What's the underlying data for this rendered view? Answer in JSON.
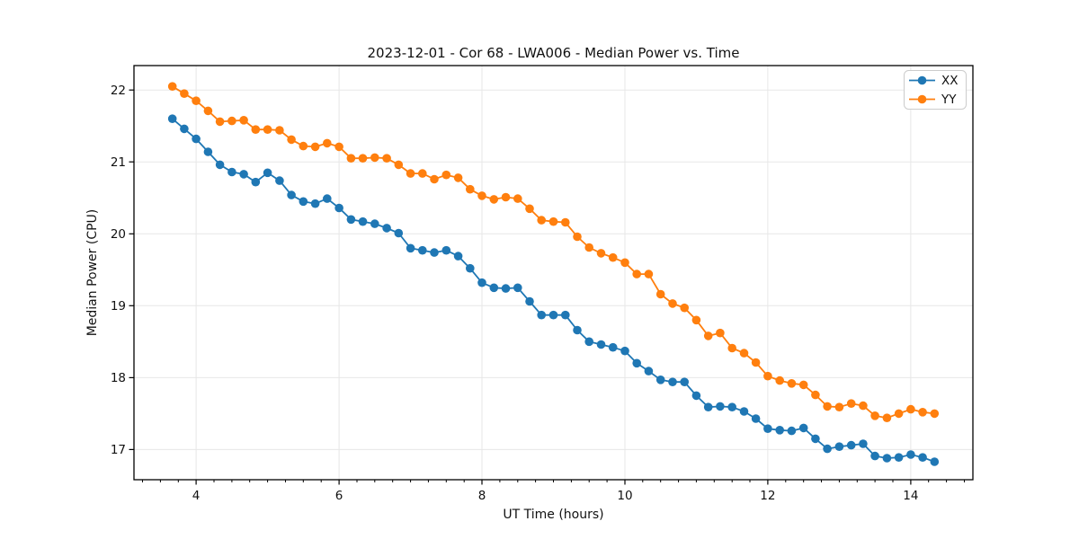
{
  "figure": {
    "background": "#ffffff"
  },
  "chart_data": {
    "type": "line",
    "title": "2023-12-01 - Cor 68 - LWA006 - Median Power vs. Time",
    "xlabel": "UT Time (hours)",
    "ylabel": "Median Power (CPU)",
    "xlim": [
      3.13,
      14.87
    ],
    "ylim": [
      16.58,
      22.34
    ],
    "xticks": [
      4,
      6,
      8,
      10,
      12,
      14
    ],
    "yticks": [
      17,
      18,
      19,
      20,
      21,
      22
    ],
    "x_minor_tick_step": 0.25,
    "grid": true,
    "grid_color": "#e7e7e7",
    "spine_color": "#000000",
    "legend_position": "upper right",
    "marker": "circle",
    "x": [
      3.667,
      3.833,
      4.0,
      4.167,
      4.333,
      4.5,
      4.667,
      4.833,
      5.0,
      5.167,
      5.333,
      5.5,
      5.667,
      5.833,
      6.0,
      6.167,
      6.333,
      6.5,
      6.667,
      6.833,
      7.0,
      7.167,
      7.333,
      7.5,
      7.667,
      7.833,
      8.0,
      8.167,
      8.333,
      8.5,
      8.667,
      8.833,
      9.0,
      9.167,
      9.333,
      9.5,
      9.667,
      9.833,
      10.0,
      10.167,
      10.333,
      10.5,
      10.667,
      10.833,
      11.0,
      11.167,
      11.333,
      11.5,
      11.667,
      11.833,
      12.0,
      12.167,
      12.333,
      12.5,
      12.667,
      12.833,
      13.0,
      13.167,
      13.333,
      13.5,
      13.667,
      13.833,
      14.0,
      14.167,
      14.333
    ],
    "series": [
      {
        "name": "XX",
        "color": "#1f77b4",
        "values": [
          21.6,
          21.46,
          21.32,
          21.14,
          20.96,
          20.86,
          20.83,
          20.72,
          20.85,
          20.74,
          20.54,
          20.45,
          20.42,
          20.49,
          20.36,
          20.2,
          20.17,
          20.14,
          20.08,
          20.01,
          19.8,
          19.77,
          19.74,
          19.77,
          19.69,
          19.52,
          19.32,
          19.25,
          19.24,
          19.25,
          19.06,
          18.87,
          18.87,
          18.87,
          18.66,
          18.5,
          18.46,
          18.42,
          18.37,
          18.2,
          18.09,
          17.97,
          17.94,
          17.94,
          17.75,
          17.59,
          17.6,
          17.59,
          17.53,
          17.43,
          17.29,
          17.27,
          17.26,
          17.3,
          17.15,
          17.01,
          17.04,
          17.06,
          17.08,
          16.91,
          16.88,
          16.89,
          16.93,
          16.89,
          16.83
        ]
      },
      {
        "name": "YY",
        "color": "#ff7f0e",
        "values": [
          22.05,
          21.95,
          21.85,
          21.71,
          21.56,
          21.57,
          21.58,
          21.45,
          21.45,
          21.44,
          21.31,
          21.22,
          21.21,
          21.26,
          21.21,
          21.05,
          21.05,
          21.06,
          21.05,
          20.96,
          20.84,
          20.84,
          20.76,
          20.82,
          20.78,
          20.62,
          20.53,
          20.48,
          20.51,
          20.49,
          20.35,
          20.19,
          20.17,
          20.16,
          19.96,
          19.81,
          19.73,
          19.67,
          19.6,
          19.44,
          19.44,
          19.16,
          19.03,
          18.97,
          18.8,
          18.58,
          18.62,
          18.41,
          18.34,
          18.21,
          18.02,
          17.96,
          17.92,
          17.9,
          17.76,
          17.6,
          17.59,
          17.64,
          17.61,
          17.47,
          17.44,
          17.5,
          17.56,
          17.52,
          17.5
        ]
      }
    ]
  }
}
